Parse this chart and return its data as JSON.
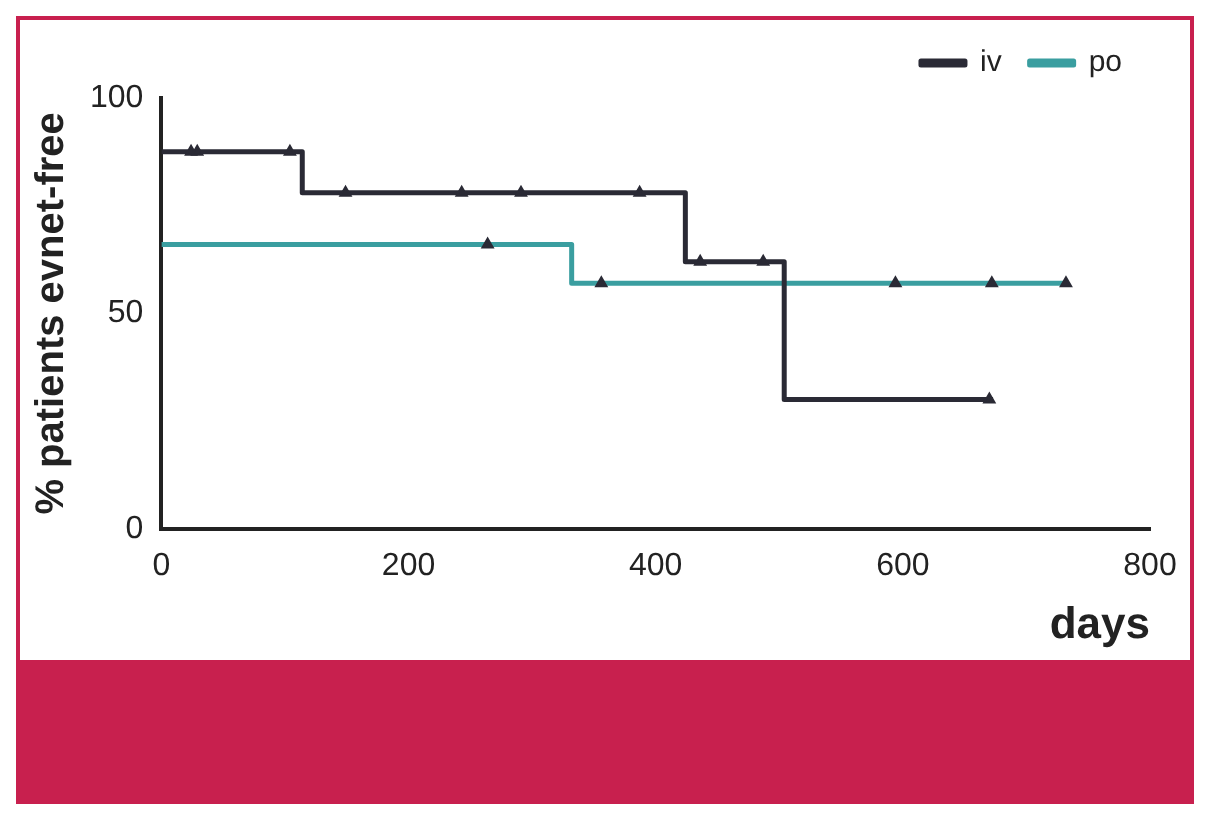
{
  "chart_data": {
    "type": "step",
    "xlabel": "days",
    "ylabel": "% patients evnet-free",
    "xlim": [
      0,
      800
    ],
    "xticks": [
      0,
      200,
      400,
      600,
      800
    ],
    "ylim": [
      0,
      100
    ],
    "yticks": [
      0,
      50,
      100
    ],
    "grid": false,
    "legend": "top right",
    "series": [
      {
        "name": "iv",
        "color": "#2a2a35",
        "x": [
          0,
          114,
          424,
          504,
          673
        ],
        "values": [
          87.5,
          78,
          62,
          30,
          30
        ]
      },
      {
        "name": "po",
        "color": "#3a9ea0",
        "x": [
          0,
          332,
          733
        ],
        "values": [
          66,
          57,
          57
        ]
      },
      {
        "type": "scatter",
        "color": "#2a2a35",
        "marker": "triangle",
        "x": [
          24,
          29,
          104,
          149,
          243,
          291,
          387,
          436,
          487,
          670
        ],
        "values": [
          87.5,
          87.5,
          87.5,
          78,
          78,
          78,
          78,
          62,
          62,
          30
        ]
      },
      {
        "type": "scatter",
        "color": "#2a2a35",
        "marker": "triangle",
        "x": [
          264,
          356,
          594,
          672,
          732
        ],
        "values": [
          66,
          57,
          57,
          57,
          57
        ]
      }
    ]
  }
}
